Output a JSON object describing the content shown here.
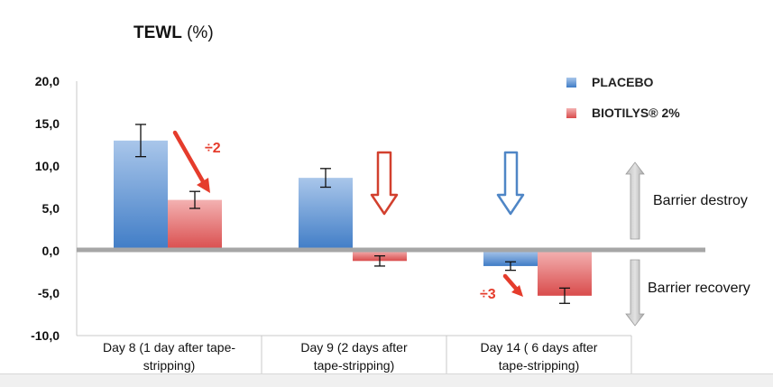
{
  "chart_data": {
    "type": "bar",
    "title": "TEWL (%)",
    "title_bold": "TEWL",
    "title_rest": " (%)",
    "ylim": [
      -10,
      20
    ],
    "yticks": [
      "20,0",
      "15,0",
      "10,0",
      "5,0",
      "0,0",
      "-5,0",
      "-10,0"
    ],
    "yticks_values": [
      20,
      15,
      10,
      5,
      0,
      -5,
      -10
    ],
    "categories": [
      "Day 8 (1 day after tape-stripping)",
      "Day 9  (2 days after tape-stripping)",
      "Day 14  ( 6 days after tape-stripping)"
    ],
    "category_lines": [
      [
        "Day 8 (1 day after tape-",
        "stripping)"
      ],
      [
        "Day 9  (2 days after",
        "tape-stripping)"
      ],
      [
        "Day 14  ( 6 days after",
        "tape-stripping)"
      ]
    ],
    "series": [
      {
        "name": "PLACEBO",
        "color": "#4f86c6",
        "values": [
          13.0,
          8.6,
          -1.8
        ],
        "errors": [
          1.9,
          1.1,
          0.5
        ]
      },
      {
        "name": "BIOTILYS® 2%",
        "color": "#e05a5a",
        "values": [
          6.0,
          -1.2,
          -5.3
        ],
        "errors": [
          1.0,
          0.6,
          0.9
        ]
      }
    ],
    "legend_position": "top-right",
    "annotations": [
      {
        "text": "÷2",
        "color": "#e53c2c"
      },
      {
        "text": "÷3",
        "color": "#e53c2c"
      }
    ],
    "side_labels": {
      "up": "Barrier destroy",
      "down": "Barrier recovery"
    },
    "grid": false
  }
}
